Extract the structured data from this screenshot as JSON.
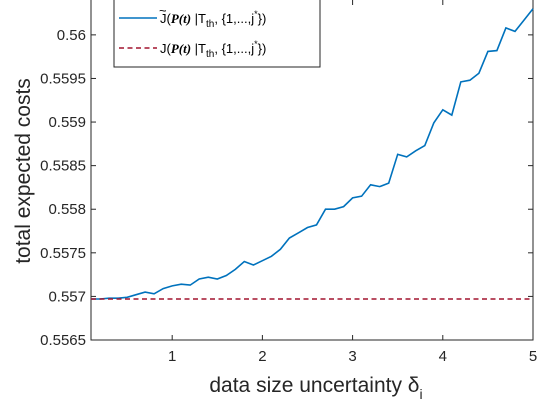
{
  "chart_data": {
    "type": "line",
    "xlabel": "data size uncertainty δ",
    "xlabel_subscript": "i",
    "ylabel": "total expected costs",
    "xlim": [
      0.1,
      5
    ],
    "ylim": [
      0.5565,
      0.5604
    ],
    "xticks": [
      1,
      2,
      3,
      4,
      5
    ],
    "xtick_labels": [
      "1",
      "2",
      "3",
      "4",
      "5"
    ],
    "yticks": [
      0.5565,
      0.557,
      0.5575,
      0.558,
      0.5585,
      0.559,
      0.5595,
      0.56
    ],
    "ytick_labels": [
      "0.5565",
      "0.557",
      "0.5575",
      "0.558",
      "0.5585",
      "0.559",
      "0.5595",
      "0.56"
    ],
    "grid": false,
    "legend_position": "top-right",
    "series": [
      {
        "name": "J̃(P(t) |T_th, {1,...,j*})",
        "legend": {
          "prefix": "J",
          "tilde": "~",
          "bold": "P(t)",
          "mid": " |T",
          "sub": "th",
          "post": ", {1,...,j",
          "sup": "*",
          "end": "})"
        },
        "color": "#0072BD",
        "style": "solid",
        "x": [
          0.1,
          0.2,
          0.3,
          0.4,
          0.5,
          0.6,
          0.7,
          0.8,
          0.9,
          1.0,
          1.1,
          1.2,
          1.3,
          1.4,
          1.5,
          1.6,
          1.7,
          1.8,
          1.9,
          2.0,
          2.1,
          2.2,
          2.3,
          2.4,
          2.5,
          2.6,
          2.7,
          2.8,
          2.9,
          3.0,
          3.1,
          3.2,
          3.3,
          3.4,
          3.5,
          3.6,
          3.7,
          3.8,
          3.9,
          4.0,
          4.1,
          4.2,
          4.3,
          4.4,
          4.5,
          4.6,
          4.7,
          4.8,
          4.9,
          5.0
        ],
        "y": [
          0.55697,
          0.55697,
          0.55698,
          0.55698,
          0.55699,
          0.55702,
          0.55705,
          0.55703,
          0.55709,
          0.55712,
          0.55714,
          0.55713,
          0.5572,
          0.55722,
          0.5572,
          0.55724,
          0.55731,
          0.5574,
          0.55736,
          0.55741,
          0.55746,
          0.55754,
          0.55767,
          0.55773,
          0.55779,
          0.55782,
          0.558,
          0.558,
          0.55803,
          0.55813,
          0.55815,
          0.55828,
          0.55826,
          0.5583,
          0.55863,
          0.5586,
          0.55867,
          0.55873,
          0.55899,
          0.55914,
          0.55908,
          0.55946,
          0.55948,
          0.55956,
          0.55981,
          0.55982,
          0.56008,
          0.56004,
          0.56017,
          0.5603
        ]
      },
      {
        "name": "J(P(t) |T_th, {1,...,j*})",
        "legend": {
          "prefix": "J",
          "tilde": "",
          "bold": "P(t)",
          "mid": " |T",
          "sub": "th",
          "post": ", {1,...,j",
          "sup": "*",
          "end": "})"
        },
        "color": "#A2142F",
        "style": "dashed",
        "x": [
          0.1,
          5.0
        ],
        "y": [
          0.55697,
          0.55697
        ]
      }
    ]
  }
}
